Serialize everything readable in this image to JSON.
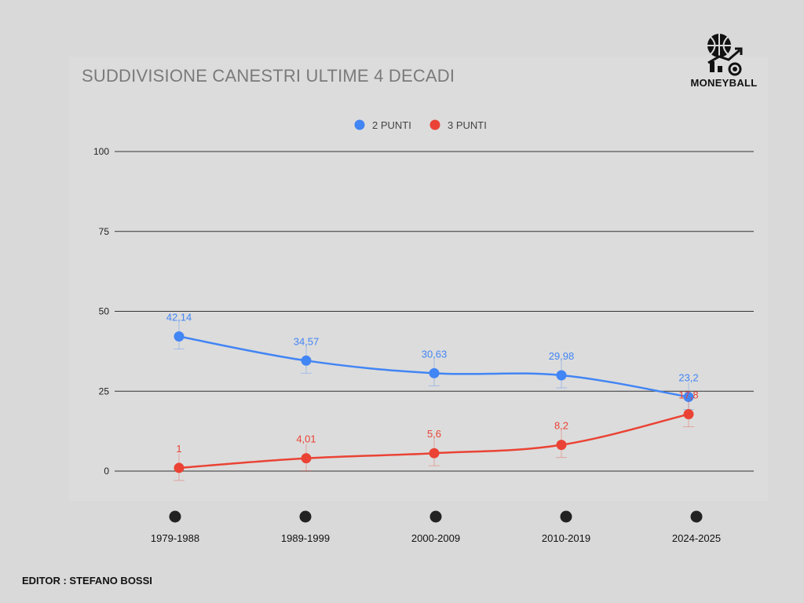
{
  "logo": {
    "text": "MONEYBALL"
  },
  "editor": "EDITOR : STEFANO BOSSI",
  "chart_data": {
    "type": "line",
    "title": "SUDDIVISIONE CANESTRI ULTIME 4 DECADI",
    "categories": [
      "1979-1988",
      "1989-1999",
      "2000-2009",
      "2010-2019",
      "2024-2025"
    ],
    "series": [
      {
        "name": "2 PUNTI",
        "color": "#4285f4",
        "values": [
          42.14,
          34.57,
          30.63,
          29.98,
          23.2
        ],
        "labels": [
          "42,14",
          "34,57",
          "30,63",
          "29,98",
          "23,2"
        ]
      },
      {
        "name": "3 PUNTI",
        "color": "#ea4335",
        "values": [
          1,
          4.01,
          5.6,
          8.2,
          17.8
        ],
        "labels": [
          "1",
          "4,01",
          "5,6",
          "8,2",
          "17,8"
        ]
      }
    ],
    "yticks": [
      0,
      25,
      50,
      75,
      100
    ],
    "ylim": [
      0,
      100
    ],
    "legend": "top",
    "grid": true
  }
}
